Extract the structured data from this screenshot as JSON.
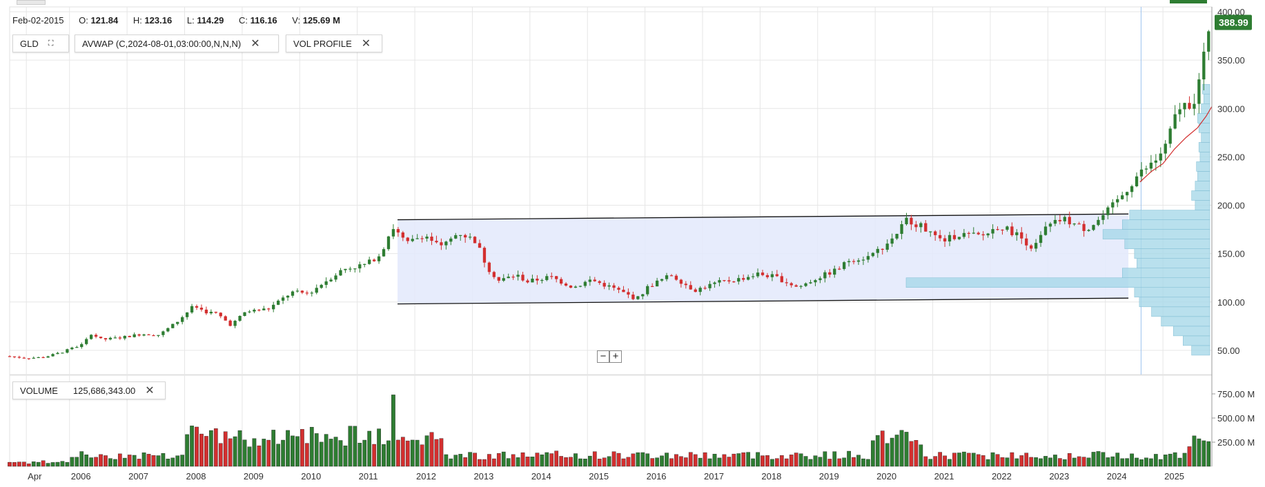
{
  "ohlc": {
    "date": "Feb-02-2015",
    "o_label": "O:",
    "o": "121.84",
    "h_label": "H:",
    "h": "123.16",
    "l_label": "L:",
    "l": "114.29",
    "c_label": "C:",
    "c": "116.16",
    "v_label": "V:",
    "v": "125.69 M"
  },
  "chips": {
    "symbol": "GLD",
    "avwap": "AVWAP (C,2024-08-01,03:00:00,N,N,N)",
    "vol_profile": "VOL PROFILE",
    "volume_label": "VOLUME",
    "volume_value": "125,686,343.00"
  },
  "zoom": {
    "minus": "−",
    "plus": "+"
  },
  "colors": {
    "up": "#2e7d32",
    "down": "#d32f2f",
    "channel": "#e3e9fb",
    "profile": "#a8d8e8",
    "avwap": "#d32f2f",
    "last_price_bg": "#2e7d32"
  },
  "chart_data": {
    "type": "candlestick",
    "symbol": "GLD",
    "y_ticks": [
      "50.00",
      "100.00",
      "150.00",
      "200.00",
      "250.00",
      "300.00",
      "350.00",
      "400.00"
    ],
    "y_tick_values": [
      50,
      100,
      150,
      200,
      250,
      300,
      350,
      400
    ],
    "volume_ticks": [
      "250.00 M",
      "500.00 M",
      "750.00 M"
    ],
    "volume_tick_values": [
      250,
      500,
      750
    ],
    "x_labels": [
      "Apr",
      "2006",
      "2007",
      "2008",
      "2009",
      "2010",
      "2011",
      "2012",
      "2013",
      "2014",
      "2015",
      "2016",
      "2017",
      "2018",
      "2019",
      "2020",
      "2021",
      "2022",
      "2023",
      "2024",
      "2025"
    ],
    "x_label_values": [
      2005.25,
      2006,
      2007,
      2008,
      2009,
      2010,
      2011,
      2012,
      2013,
      2014,
      2015,
      2016,
      2017,
      2018,
      2019,
      2020,
      2021,
      2022,
      2023,
      2024,
      2025
    ],
    "last_price": "388.99",
    "last_price_value": 388.99,
    "x_range": [
      2004.96,
      2025.85
    ],
    "y_range": [
      25,
      405
    ],
    "channel": {
      "x_start": 2011.7,
      "x_end": 2024.4,
      "top_start": 185,
      "top_end": 191,
      "bottom_start": 98,
      "bottom_end": 104
    },
    "price_keypoints": [
      [
        2004.96,
        44
      ],
      [
        2005.3,
        42
      ],
      [
        2005.6,
        43
      ],
      [
        2005.9,
        48
      ],
      [
        2006.3,
        57
      ],
      [
        2006.4,
        68
      ],
      [
        2006.6,
        61
      ],
      [
        2006.9,
        63
      ],
      [
        2007.3,
        67
      ],
      [
        2007.6,
        66
      ],
      [
        2007.9,
        79
      ],
      [
        2008.2,
        96
      ],
      [
        2008.4,
        90
      ],
      [
        2008.6,
        88
      ],
      [
        2008.85,
        76
      ],
      [
        2009.1,
        90
      ],
      [
        2009.5,
        93
      ],
      [
        2009.9,
        110
      ],
      [
        2010.2,
        109
      ],
      [
        2010.5,
        122
      ],
      [
        2010.8,
        134
      ],
      [
        2011.2,
        139
      ],
      [
        2011.45,
        150
      ],
      [
        2011.65,
        178
      ],
      [
        2011.9,
        160
      ],
      [
        2012.2,
        170
      ],
      [
        2012.5,
        156
      ],
      [
        2012.8,
        172
      ],
      [
        2013.1,
        163
      ],
      [
        2013.3,
        136
      ],
      [
        2013.5,
        122
      ],
      [
        2013.8,
        128
      ],
      [
        2014.0,
        121
      ],
      [
        2014.4,
        126
      ],
      [
        2014.8,
        115
      ],
      [
        2015.1,
        123
      ],
      [
        2015.5,
        114
      ],
      [
        2015.9,
        103
      ],
      [
        2016.1,
        116
      ],
      [
        2016.5,
        128
      ],
      [
        2016.9,
        112
      ],
      [
        2017.3,
        120
      ],
      [
        2017.7,
        124
      ],
      [
        2018.0,
        129
      ],
      [
        2018.3,
        126
      ],
      [
        2018.7,
        115
      ],
      [
        2019.0,
        124
      ],
      [
        2019.4,
        134
      ],
      [
        2019.6,
        144
      ],
      [
        2019.9,
        146
      ],
      [
        2020.2,
        158
      ],
      [
        2020.4,
        170
      ],
      [
        2020.6,
        186
      ],
      [
        2020.9,
        176
      ],
      [
        2021.2,
        163
      ],
      [
        2021.5,
        170
      ],
      [
        2021.9,
        168
      ],
      [
        2022.2,
        179
      ],
      [
        2022.5,
        170
      ],
      [
        2022.8,
        155
      ],
      [
        2023.0,
        176
      ],
      [
        2023.3,
        186
      ],
      [
        2023.7,
        175
      ],
      [
        2023.95,
        186
      ],
      [
        2024.2,
        201
      ],
      [
        2024.4,
        215
      ],
      [
        2024.6,
        231
      ],
      [
        2024.9,
        245
      ],
      [
        2025.1,
        262
      ],
      [
        2025.3,
        300
      ],
      [
        2025.6,
        308
      ],
      [
        2025.75,
        352
      ],
      [
        2025.85,
        389
      ]
    ],
    "avwap_points": [
      [
        2024.6,
        224
      ],
      [
        2024.8,
        235
      ],
      [
        2025.0,
        243
      ],
      [
        2025.2,
        258
      ],
      [
        2025.4,
        270
      ],
      [
        2025.6,
        280
      ],
      [
        2025.75,
        292
      ],
      [
        2025.85,
        302
      ]
    ],
    "volume_profile": [
      [
        50,
        15
      ],
      [
        60,
        22
      ],
      [
        70,
        30
      ],
      [
        80,
        40
      ],
      [
        90,
        48
      ],
      [
        100,
        58
      ],
      [
        110,
        62
      ],
      [
        120,
        250
      ],
      [
        130,
        72
      ],
      [
        140,
        60
      ],
      [
        150,
        62
      ],
      [
        160,
        70
      ],
      [
        170,
        88
      ],
      [
        180,
        72
      ],
      [
        190,
        66
      ],
      [
        200,
        12
      ],
      [
        210,
        15
      ],
      [
        220,
        12
      ],
      [
        230,
        10
      ],
      [
        240,
        11
      ],
      [
        250,
        8
      ],
      [
        260,
        9
      ],
      [
        270,
        7
      ],
      [
        280,
        9
      ],
      [
        290,
        10
      ],
      [
        300,
        7
      ],
      [
        310,
        5
      ],
      [
        320,
        6
      ]
    ]
  }
}
